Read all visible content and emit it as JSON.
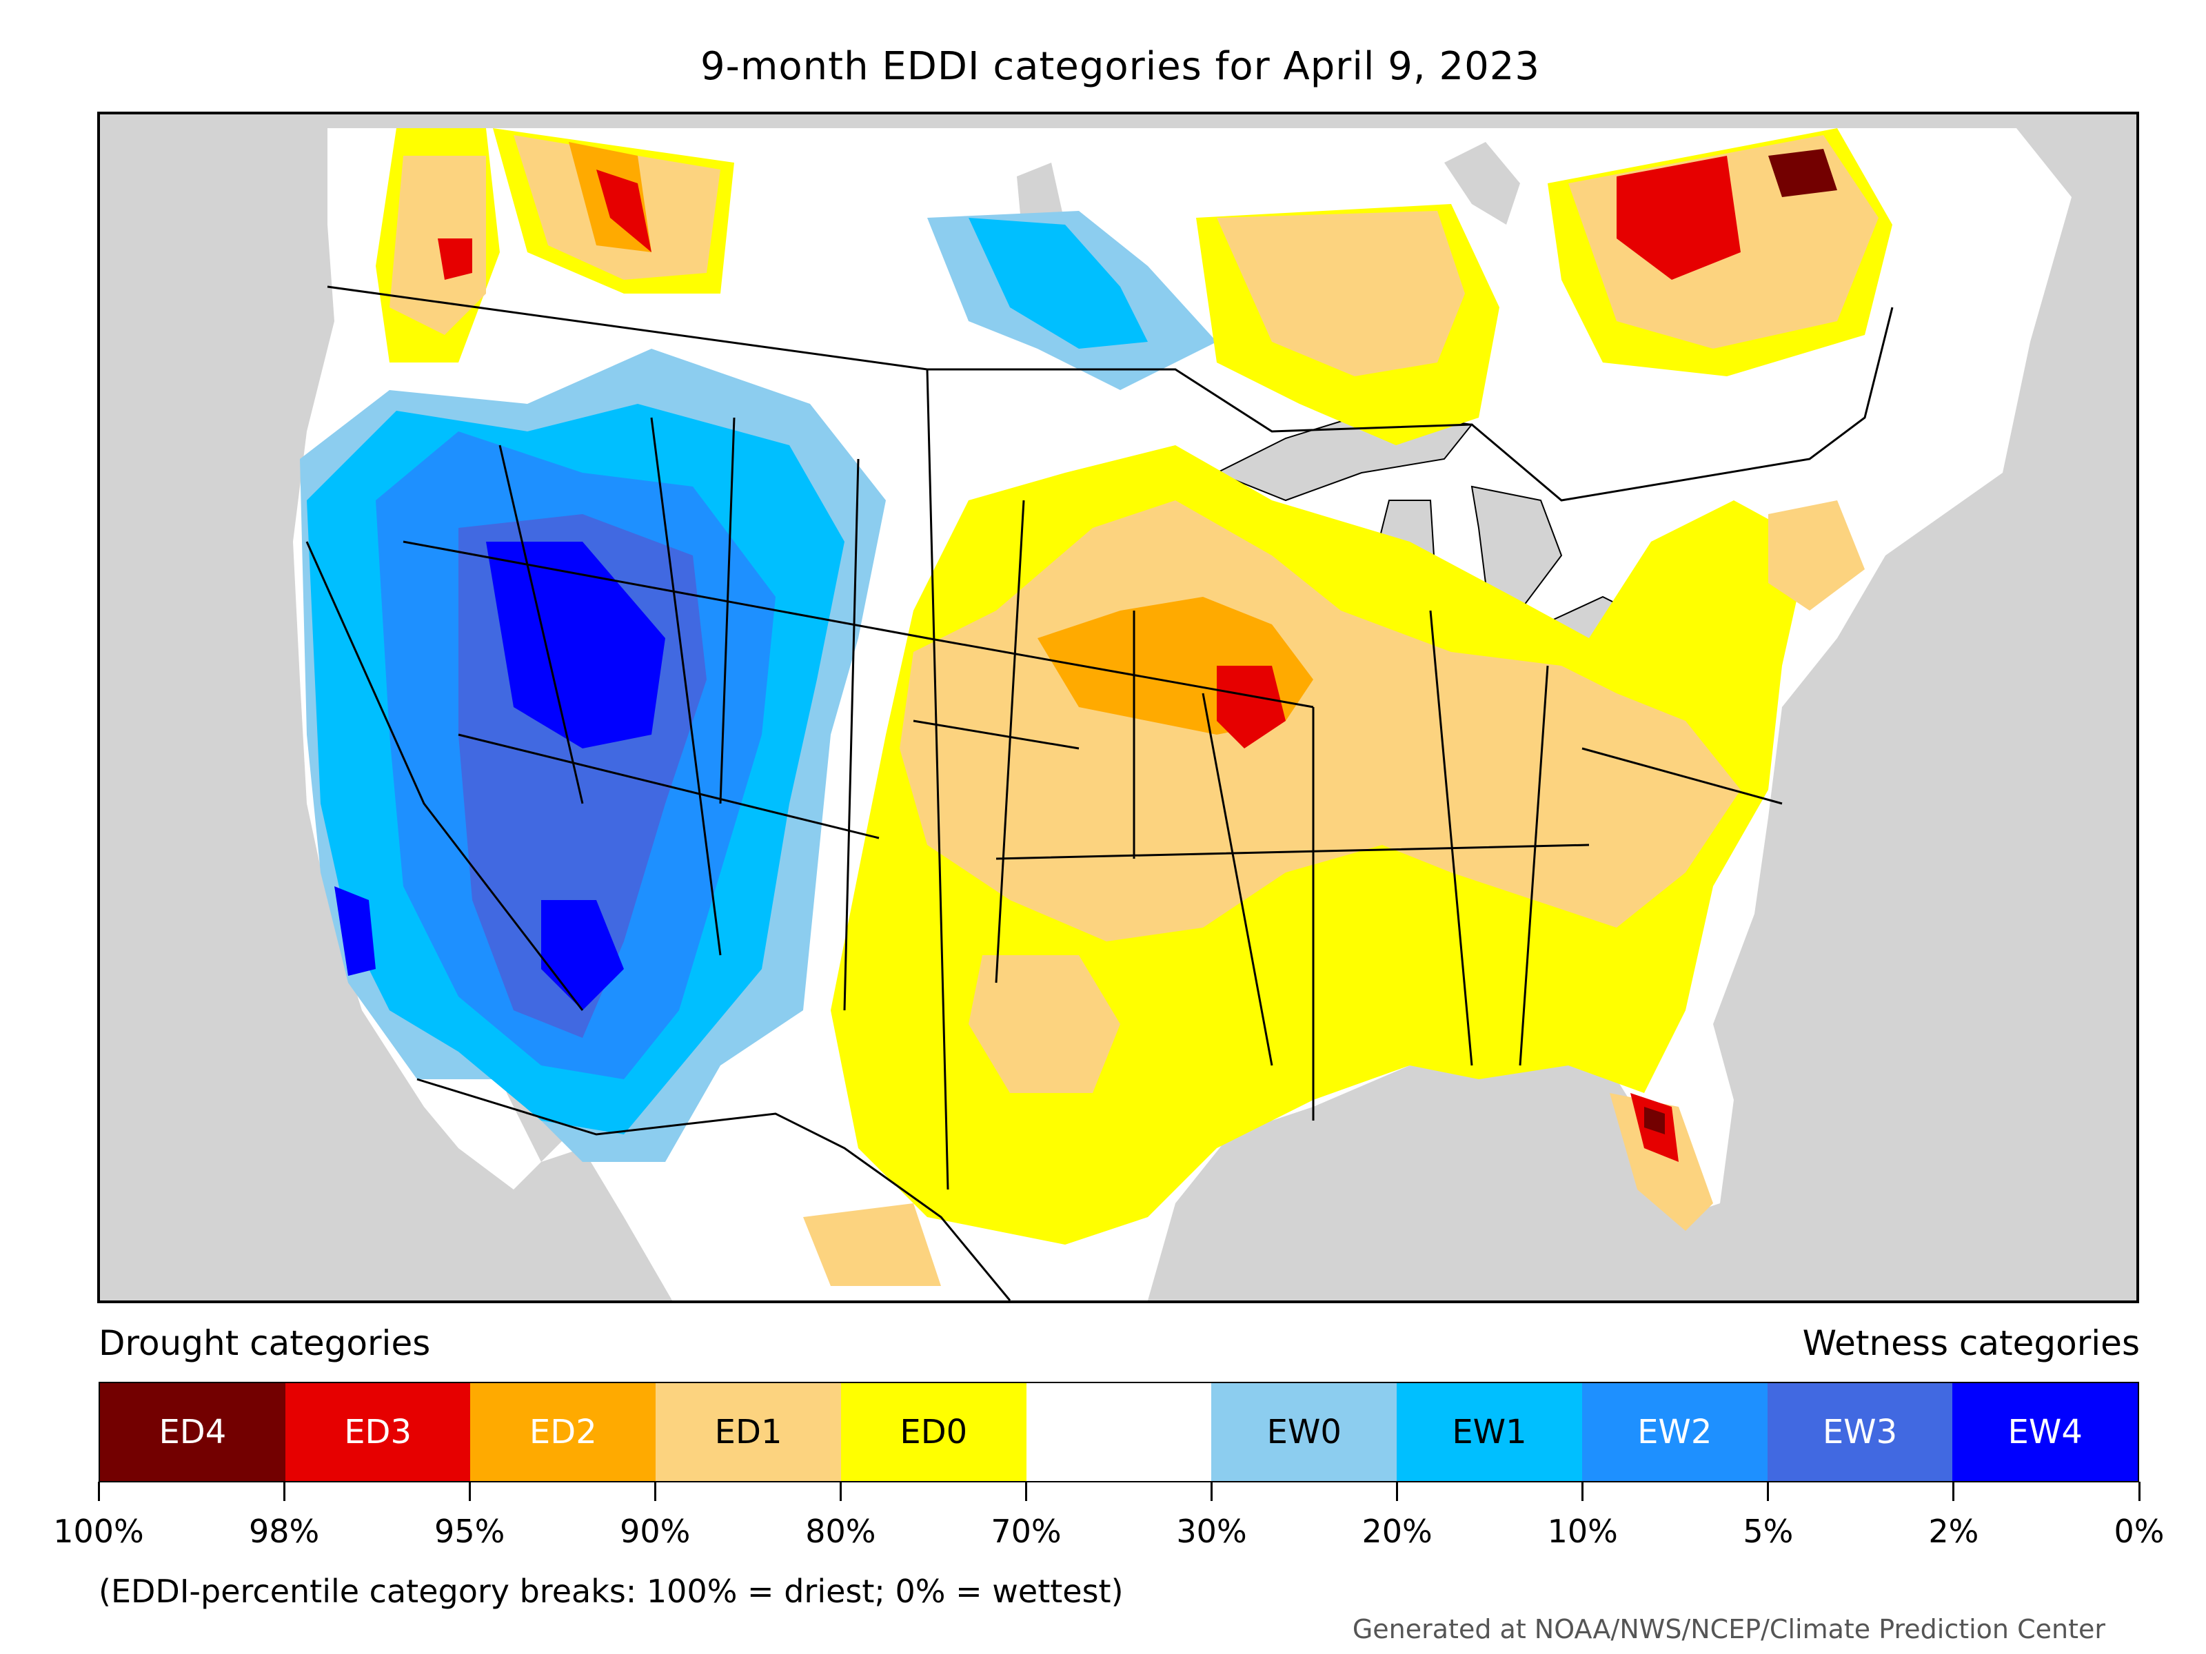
{
  "title": "9-month EDDI categories for April 9, 2023",
  "legend": {
    "drought_heading": "Drought categories",
    "wetness_heading": "Wetness categories",
    "categories": [
      {
        "label": "ED4",
        "color": "#730000",
        "text_color": "#ffffff"
      },
      {
        "label": "ED3",
        "color": "#e60000",
        "text_color": "#ffffff"
      },
      {
        "label": "ED2",
        "color": "#ffaa00",
        "text_color": "#ffffff"
      },
      {
        "label": "ED1",
        "color": "#fcd37f",
        "text_color": "#000000"
      },
      {
        "label": "ED0",
        "color": "#ffff00",
        "text_color": "#000000"
      },
      {
        "label": "",
        "color": "#ffffff",
        "text_color": "#000000"
      },
      {
        "label": "EW0",
        "color": "#8ccdef",
        "text_color": "#000000"
      },
      {
        "label": "EW1",
        "color": "#00bfff",
        "text_color": "#000000"
      },
      {
        "label": "EW2",
        "color": "#1e90ff",
        "text_color": "#ffffff"
      },
      {
        "label": "EW3",
        "color": "#4169e1",
        "text_color": "#ffffff"
      },
      {
        "label": "EW4",
        "color": "#0000ff",
        "text_color": "#ffffff"
      }
    ],
    "breaks": [
      "100%",
      "98%",
      "95%",
      "90%",
      "80%",
      "70%",
      "30%",
      "20%",
      "10%",
      "5%",
      "2%",
      "0%"
    ]
  },
  "footnote": "(EDDI-percentile category breaks: 100% = driest; 0% = wettest)",
  "credit": "Generated at NOAA/NWS/NCEP/Climate Prediction Center",
  "map_colors": {
    "ocean": "#d3d3d3",
    "land": "#ffffff",
    "border": "#000000"
  }
}
